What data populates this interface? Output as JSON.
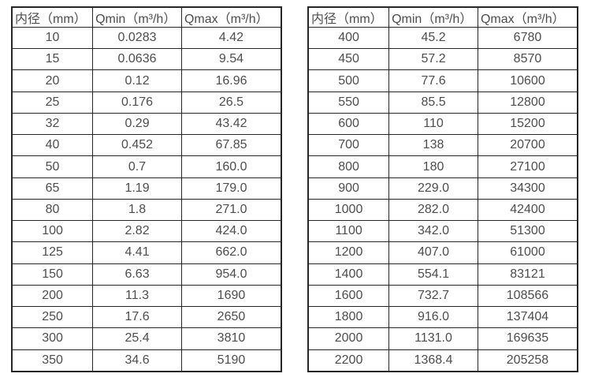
{
  "colors": {
    "text": "#4d4d4d",
    "border": "#262626",
    "background": "#ffffff"
  },
  "tables": [
    {
      "name": "small-diameter-flow-rates",
      "headers": [
        "内径（mm）",
        "Qmin（m³/h）",
        "Qmax（m³/h）"
      ],
      "rows": [
        [
          "10",
          "0.0283",
          "4.42"
        ],
        [
          "15",
          "0.0636",
          "9.54"
        ],
        [
          "20",
          "0.12",
          "16.96"
        ],
        [
          "25",
          "0.176",
          "26.5"
        ],
        [
          "32",
          "0.29",
          "43.42"
        ],
        [
          "40",
          "0.452",
          "67.85"
        ],
        [
          "50",
          "0.7",
          "160.0"
        ],
        [
          "65",
          "1.19",
          "179.0"
        ],
        [
          "80",
          "1.8",
          "271.0"
        ],
        [
          "100",
          "2.82",
          "424.0"
        ],
        [
          "125",
          "4.41",
          "662.0"
        ],
        [
          "150",
          "6.63",
          "954.0"
        ],
        [
          "200",
          "11.3",
          "1690"
        ],
        [
          "250",
          "17.6",
          "2650"
        ],
        [
          "300",
          "25.4",
          "3810"
        ],
        [
          "350",
          "34.6",
          "5190"
        ]
      ]
    },
    {
      "name": "large-diameter-flow-rates",
      "headers": [
        "内径（mm）",
        "Qmin（m³/h）",
        "Qmax（m³/h）"
      ],
      "rows": [
        [
          "400",
          "45.2",
          "6780"
        ],
        [
          "450",
          "57.2",
          "8570"
        ],
        [
          "500",
          "77.6",
          "10600"
        ],
        [
          "550",
          "85.5",
          "12800"
        ],
        [
          "600",
          "110",
          "15200"
        ],
        [
          "700",
          "138",
          "20700"
        ],
        [
          "800",
          "180",
          "27100"
        ],
        [
          "900",
          "229.0",
          "34300"
        ],
        [
          "1000",
          "282.0",
          "42400"
        ],
        [
          "1100",
          "342.0",
          "51300"
        ],
        [
          "1200",
          "407.0",
          "61000"
        ],
        [
          "1400",
          "554.1",
          "83121"
        ],
        [
          "1600",
          "732.7",
          "108566"
        ],
        [
          "1800",
          "916.0",
          "137404"
        ],
        [
          "2000",
          "1131.0",
          "169635"
        ],
        [
          "2200",
          "1368.4",
          "205258"
        ]
      ]
    }
  ]
}
